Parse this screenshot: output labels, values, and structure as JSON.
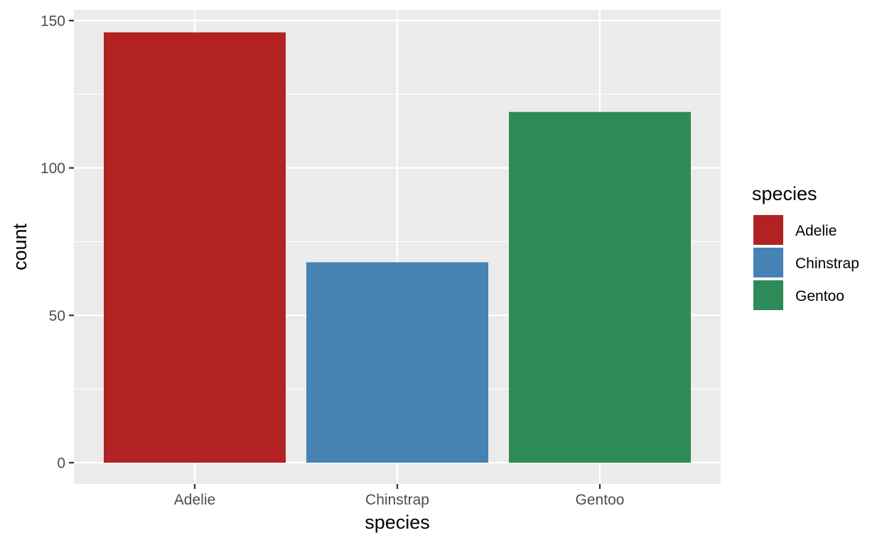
{
  "chart_data": {
    "type": "bar",
    "title": "",
    "xlabel": "species",
    "ylabel": "count",
    "categories": [
      "Adelie",
      "Chinstrap",
      "Gentoo"
    ],
    "values": [
      146,
      68,
      119
    ],
    "colors": [
      "#b22222",
      "#4682b4",
      "#2e8b57"
    ],
    "ylim": [
      0,
      152
    ],
    "yticks": [
      0,
      50,
      100,
      150
    ],
    "grid": true,
    "legend": {
      "title": "species",
      "position": "right",
      "items": [
        {
          "label": "Adelie",
          "color": "#b22222"
        },
        {
          "label": "Chinstrap",
          "color": "#4682b4"
        },
        {
          "label": "Gentoo",
          "color": "#2e8b57"
        }
      ]
    },
    "panel_background": "#ebebeb",
    "grid_color": "#ffffff",
    "tick_color": "#333333"
  }
}
